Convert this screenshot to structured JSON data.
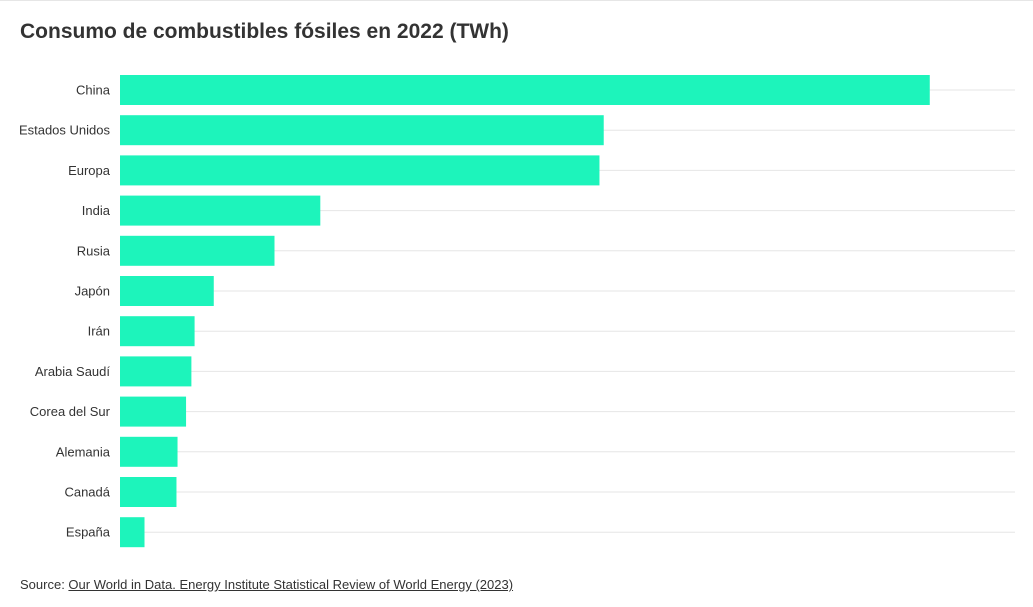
{
  "chart_data": {
    "type": "bar",
    "orientation": "horizontal",
    "title": "Consumo de combustibles fósiles en 2022 (TWh)",
    "categories": [
      "China",
      "Estados Unidos",
      "Europa",
      "India",
      "Rusia",
      "Japón",
      "Irán",
      "Arabia Saudí",
      "Corea del Sur",
      "Alemania",
      "Canadá",
      "España"
    ],
    "values": [
      38000,
      22700,
      22500,
      9400,
      7250,
      4400,
      3500,
      3350,
      3100,
      2700,
      2650,
      1150
    ],
    "xlim": [
      0,
      42000
    ],
    "grid": true,
    "bar_color": "#1df4bb",
    "grid_color": "#e6e6e6"
  },
  "source": {
    "prefix": "Source: ",
    "link_text": "Our World in Data. Energy Institute Statistical Review of World Energy (2023)"
  }
}
